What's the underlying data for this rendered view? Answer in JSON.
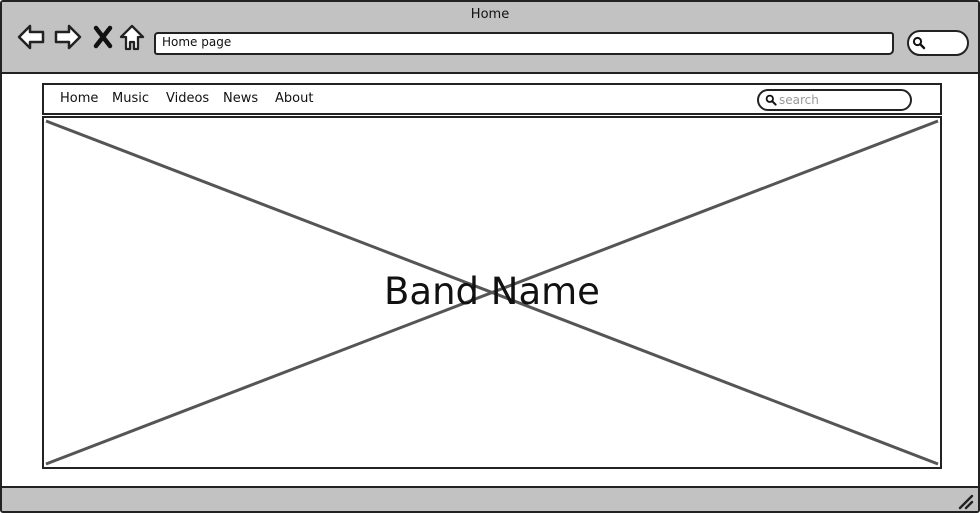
{
  "window": {
    "title": "Home"
  },
  "browser": {
    "address": "Home page",
    "icons": [
      "back-arrow-icon",
      "forward-arrow-icon",
      "close-x-icon",
      "home-icon",
      "search-icon"
    ]
  },
  "navbar": {
    "items": [
      {
        "label": "Home"
      },
      {
        "label": "Music"
      },
      {
        "label": "Videos"
      },
      {
        "label": "News"
      },
      {
        "label": "About"
      }
    ],
    "search": {
      "placeholder": "search",
      "value": ""
    }
  },
  "hero": {
    "text": "Band Name",
    "image": "image-placeholder"
  },
  "colors": {
    "chrome": "#c2c2c2",
    "stroke": "#222222",
    "placeholder_line": "#555555"
  }
}
